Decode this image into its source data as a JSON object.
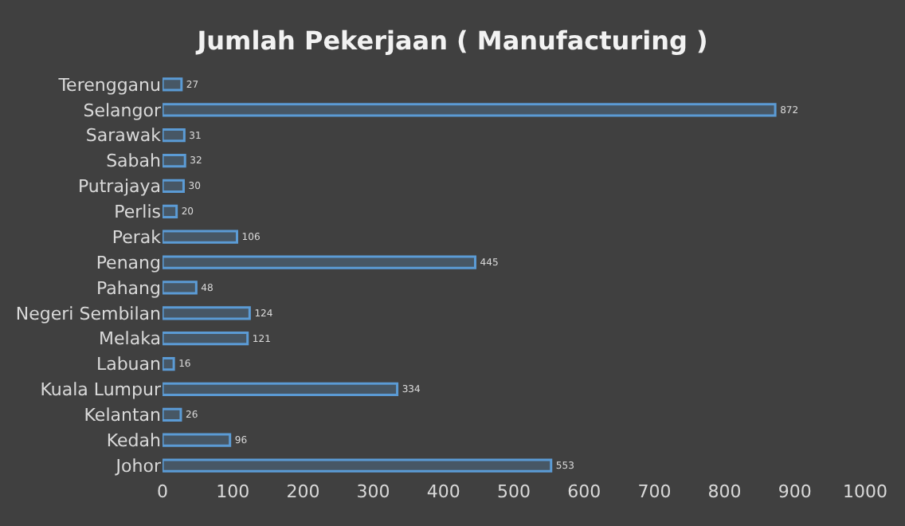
{
  "chart_data": {
    "type": "bar",
    "orientation": "horizontal",
    "title": "Jumlah Pekerjaan ( Manufacturing )",
    "categories": [
      "Terengganu",
      "Selangor",
      "Sarawak",
      "Sabah",
      "Putrajaya",
      "Perlis",
      "Perak",
      "Penang",
      "Pahang",
      "Negeri Sembilan",
      "Melaka",
      "Labuan",
      "Kuala Lumpur",
      "Kelantan",
      "Kedah",
      "Johor"
    ],
    "values": [
      27,
      872,
      31,
      32,
      30,
      20,
      106,
      445,
      48,
      124,
      121,
      16,
      334,
      26,
      96,
      553
    ],
    "color": "#5b9bd5",
    "xlim": [
      0,
      1000
    ],
    "xticks": [
      0,
      100,
      200,
      300,
      400,
      500,
      600,
      700,
      800,
      900,
      1000
    ],
    "grid": false,
    "legend": false,
    "data_labels": true
  }
}
